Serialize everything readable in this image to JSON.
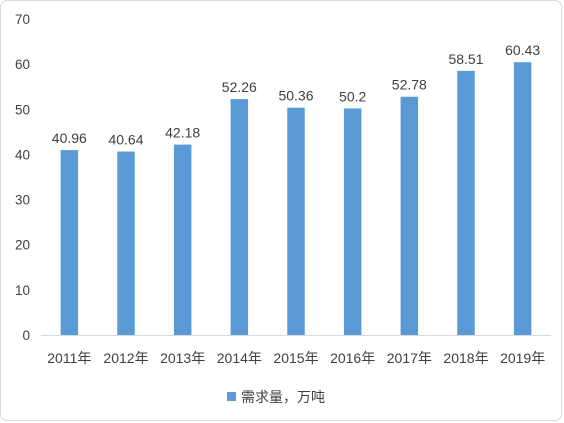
{
  "chart_data": {
    "type": "bar",
    "categories": [
      "2011年",
      "2012年",
      "2013年",
      "2014年",
      "2015年",
      "2016年",
      "2017年",
      "2018年",
      "2019年"
    ],
    "values": [
      40.96,
      40.64,
      42.18,
      52.26,
      50.36,
      50.2,
      52.78,
      58.51,
      60.43
    ],
    "data_labels": [
      "40.96",
      "40.64",
      "42.18",
      "52.26",
      "50.36",
      "50.2",
      "52.78",
      "58.51",
      "60.43"
    ],
    "series": [
      {
        "name": "需求量，万吨",
        "values": [
          40.96,
          40.64,
          42.18,
          52.26,
          50.36,
          50.2,
          52.78,
          58.51,
          60.43
        ]
      }
    ],
    "ylim": [
      0,
      70
    ],
    "yticks": [
      "0",
      "10",
      "20",
      "30",
      "40",
      "50",
      "60",
      "70"
    ],
    "grid": false,
    "legend_position": "bottom",
    "bar_color": "#5b9bd5"
  }
}
